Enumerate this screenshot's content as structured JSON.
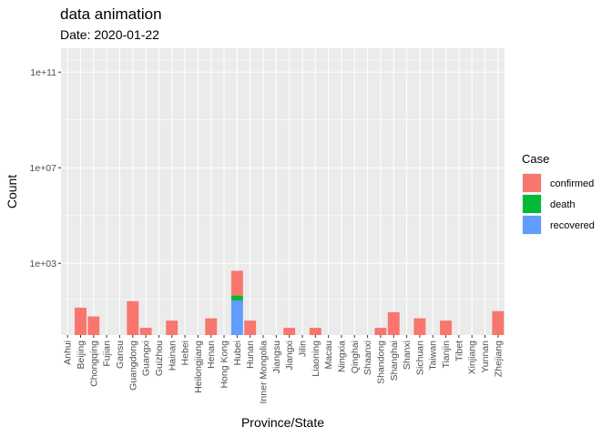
{
  "chart_data": {
    "type": "bar",
    "stacked": true,
    "title": "data animation",
    "subtitle": "Date: 2020-01-22",
    "xlabel": "Province/State",
    "ylabel": "Count",
    "y_scale": "log10",
    "ylim": [
      1,
      1000000000000
    ],
    "y_ticks": [
      {
        "value": 1000,
        "label": "1e+03"
      },
      {
        "value": 10000000,
        "label": "1e+07"
      },
      {
        "value": 100000000000,
        "label": "1e+11"
      }
    ],
    "grid": true,
    "legend": {
      "title": "Case",
      "position": "right",
      "entries": [
        {
          "name": "confirmed",
          "color": "#F8766D"
        },
        {
          "name": "death",
          "color": "#00BA38"
        },
        {
          "name": "recovered",
          "color": "#619CFF"
        }
      ]
    },
    "categories": [
      "Anhui",
      "Beijing",
      "Chongqing",
      "Fujian",
      "Gansu",
      "Guangdong",
      "Guangxi",
      "Guizhou",
      "Hainan",
      "Hebei",
      "Heilongjiang",
      "Henan",
      "Hong Kong",
      "Hubei",
      "Hunan",
      "Inner Mongolia",
      "Jiangsu",
      "Jiangxi",
      "Jilin",
      "Liaoning",
      "Macau",
      "Ningxia",
      "Qinghai",
      "Shaanxi",
      "Shandong",
      "Shanghai",
      "Shanxi",
      "Sichuan",
      "Taiwan",
      "Tianjin",
      "Tibet",
      "Xinjiang",
      "Yunnan",
      "Zhejiang"
    ],
    "series": [
      {
        "name": "recovered",
        "values": [
          0,
          0,
          0,
          0,
          0,
          0,
          0,
          0,
          0,
          0,
          0,
          0,
          0,
          28,
          0,
          0,
          0,
          0,
          0,
          0,
          0,
          0,
          0,
          0,
          0,
          0,
          0,
          0,
          0,
          0,
          0,
          0,
          0,
          0
        ]
      },
      {
        "name": "death",
        "values": [
          0,
          0,
          0,
          0,
          0,
          0,
          0,
          0,
          0,
          0,
          0,
          0,
          0,
          17,
          0,
          0,
          0,
          0,
          0,
          0,
          0,
          0,
          0,
          0,
          0,
          0,
          0,
          0,
          0,
          0,
          0,
          0,
          0,
          0
        ]
      },
      {
        "name": "confirmed",
        "values": [
          1,
          14,
          6,
          1,
          0,
          26,
          2,
          1,
          4,
          1,
          0,
          5,
          0,
          444,
          4,
          0,
          1,
          2,
          0,
          2,
          1,
          0,
          0,
          0,
          2,
          9,
          1,
          5,
          1,
          4,
          0,
          0,
          1,
          10
        ]
      }
    ]
  }
}
